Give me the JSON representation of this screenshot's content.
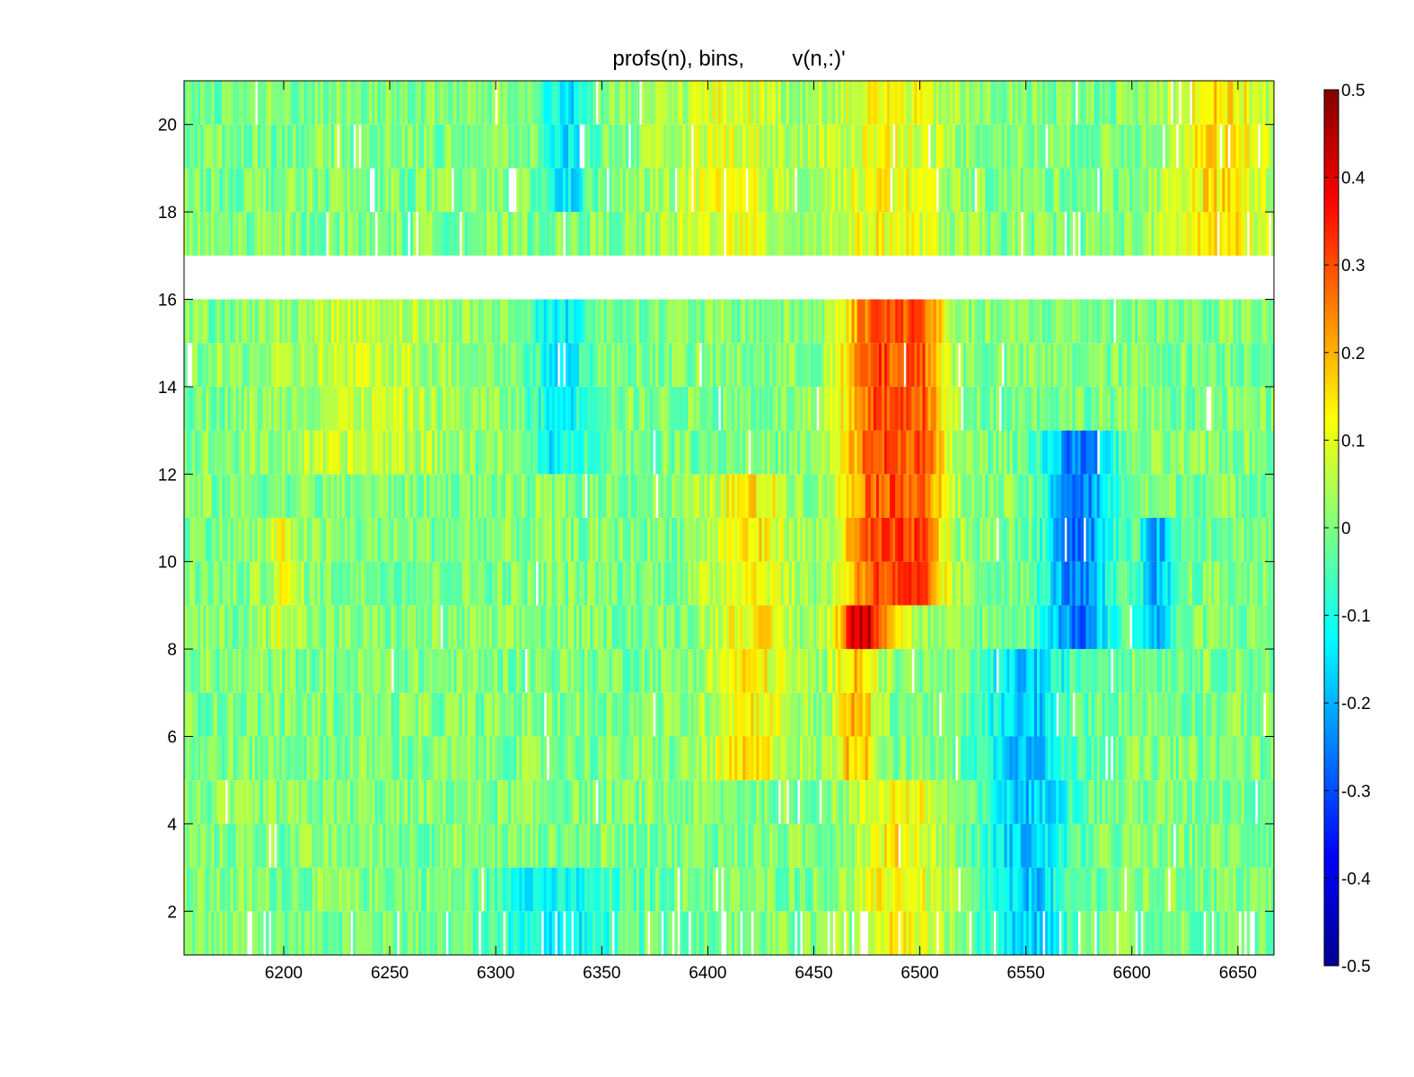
{
  "chart_data": {
    "type": "heatmap",
    "title": "profs(n), bins,        v(n,:)'",
    "xlabel": "",
    "ylabel": "",
    "xlim": [
      6153,
      6667
    ],
    "ylim": [
      1,
      21
    ],
    "x_ticks": [
      6200,
      6250,
      6300,
      6350,
      6400,
      6450,
      6500,
      6550,
      6600,
      6650
    ],
    "y_ticks": [
      2,
      4,
      6,
      8,
      10,
      12,
      14,
      16,
      18,
      20
    ],
    "x_tick_labels": [
      "6200",
      "6250",
      "6300",
      "6350",
      "6400",
      "6450",
      "6500",
      "6550",
      "6600",
      "6650"
    ],
    "y_tick_labels": [
      "2",
      "4",
      "6",
      "8",
      "10",
      "12",
      "14",
      "16",
      "18",
      "20"
    ],
    "colorbar": {
      "colormap": "jet",
      "clim": [
        -0.5,
        0.5
      ],
      "ticks": [
        0.5,
        0.4,
        0.3,
        0.2,
        0.1,
        0,
        -0.1,
        -0.2,
        -0.3,
        -0.4,
        -0.5
      ],
      "tick_labels": [
        "0.5",
        "0.4",
        "0.3",
        "0.2",
        "0.1",
        "0",
        "-0.1",
        "-0.2",
        "-0.3",
        "-0.4",
        "-0.5"
      ]
    },
    "rows": [
      1,
      2,
      3,
      4,
      5,
      6,
      7,
      8,
      9,
      10,
      11,
      12,
      13,
      14,
      15,
      16,
      17,
      18,
      19,
      20
    ],
    "missing_rows": [
      16
    ],
    "value_features": [
      {
        "x_center": 6478,
        "x_width": 22,
        "y_range": [
          8,
          16
        ],
        "value": 0.28
      },
      {
        "x_center": 6500,
        "x_width": 18,
        "y_range": [
          9,
          16
        ],
        "value": 0.26
      },
      {
        "x_center": 6470,
        "x_width": 14,
        "y_range": [
          5,
          9
        ],
        "value": 0.2
      },
      {
        "x_center": 6490,
        "x_width": 30,
        "y_range": [
          1,
          5
        ],
        "value": 0.13
      },
      {
        "x_center": 6420,
        "x_width": 28,
        "y_range": [
          5,
          12
        ],
        "value": 0.14
      },
      {
        "x_center": 6410,
        "x_width": 40,
        "y_range": [
          17,
          21
        ],
        "value": 0.1
      },
      {
        "x_center": 6485,
        "x_width": 40,
        "y_range": [
          17,
          21
        ],
        "value": 0.12
      },
      {
        "x_center": 6640,
        "x_width": 35,
        "y_range": [
          17,
          21
        ],
        "value": 0.15
      },
      {
        "x_center": 6575,
        "x_width": 22,
        "y_range": [
          8,
          13
        ],
        "value": -0.27
      },
      {
        "x_center": 6612,
        "x_width": 12,
        "y_range": [
          8,
          11
        ],
        "value": -0.2
      },
      {
        "x_center": 6550,
        "x_width": 30,
        "y_range": [
          1,
          8
        ],
        "value": -0.18
      },
      {
        "x_center": 6330,
        "x_width": 18,
        "y_range": [
          12,
          16
        ],
        "value": -0.14
      },
      {
        "x_center": 6333,
        "x_width": 15,
        "y_range": [
          18,
          21
        ],
        "value": -0.15
      },
      {
        "x_center": 6330,
        "x_width": 45,
        "y_range": [
          1,
          3
        ],
        "value": -0.13
      },
      {
        "x_center": 6240,
        "x_width": 60,
        "y_range": [
          12,
          16
        ],
        "value": 0.07
      },
      {
        "x_center": 6200,
        "x_width": 12,
        "y_range": [
          8,
          11
        ],
        "value": 0.1
      }
    ],
    "grid": false,
    "legend": "colorbar-right"
  }
}
